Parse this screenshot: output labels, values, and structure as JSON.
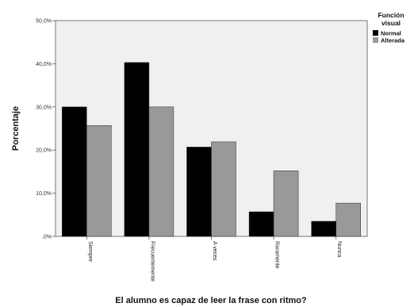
{
  "chart_data": {
    "type": "bar",
    "title": "",
    "xlabel": "El alumno es capaz de leer la frase con ritmo?",
    "ylabel": "Porcentaje",
    "categories": [
      "Siempre",
      "Frecuentemente",
      "A veces",
      "Raramente",
      "Nunca"
    ],
    "series": [
      {
        "name": "Normal",
        "color": "#000000",
        "values": [
          30.0,
          40.3,
          20.7,
          5.7,
          3.5
        ]
      },
      {
        "name": "Alterada",
        "color": "#999999",
        "values": [
          25.7,
          30.0,
          21.9,
          15.2,
          7.7
        ]
      }
    ],
    "ylim": [
      0,
      50
    ],
    "yticks": [
      0,
      10,
      20,
      30,
      40,
      50
    ],
    "ytick_labels": [
      ",0%",
      "10,0%",
      "20,0%",
      "30,0%",
      "40,0%",
      "50,0%"
    ],
    "grid": false,
    "plot_background": "#f0f0f0",
    "legend": {
      "placement": "top-right outside",
      "title_lines": [
        "Función",
        "visual"
      ]
    }
  }
}
